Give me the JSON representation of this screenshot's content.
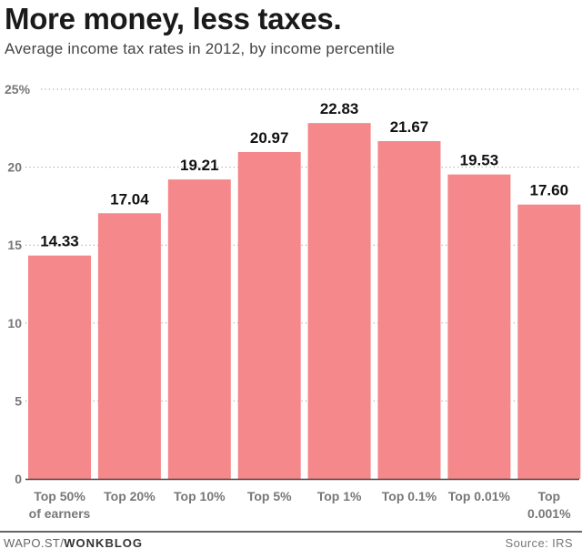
{
  "header": {
    "title": "More money, less taxes.",
    "subtitle": "Average income tax rates in 2012, by income percentile"
  },
  "footer": {
    "credit_prefix": "WAPO.ST/",
    "credit_bold": "WONKBLOG",
    "source": "Source: IRS"
  },
  "colors": {
    "bar": "#f4888a",
    "grid": "#999999",
    "axis": "#444444",
    "tick_text": "#777777",
    "value_text": "#111111"
  },
  "chart_data": {
    "type": "bar",
    "title": "More money, less taxes.",
    "subtitle": "Average income tax rates in 2012, by income percentile",
    "xlabel": "",
    "ylabel": "",
    "categories": [
      [
        "Top 50%",
        "of earners"
      ],
      [
        "Top 20%"
      ],
      [
        "Top 10%"
      ],
      [
        "Top 5%"
      ],
      [
        "Top 1%"
      ],
      [
        "Top 0.1%"
      ],
      [
        "Top 0.01%"
      ],
      [
        "Top",
        "0.001%"
      ]
    ],
    "values": [
      14.33,
      17.04,
      19.21,
      20.97,
      22.83,
      21.67,
      19.53,
      17.6
    ],
    "value_labels": [
      "14.33",
      "17.04",
      "19.21",
      "20.97",
      "22.83",
      "21.67",
      "19.53",
      "17.60"
    ],
    "ylim": [
      0,
      25
    ],
    "yticks": [
      0,
      5,
      10,
      15,
      20,
      25
    ],
    "ytick_labels": [
      "0",
      "5",
      "10",
      "15",
      "20",
      "25%"
    ],
    "grid": true,
    "legend": "none"
  }
}
